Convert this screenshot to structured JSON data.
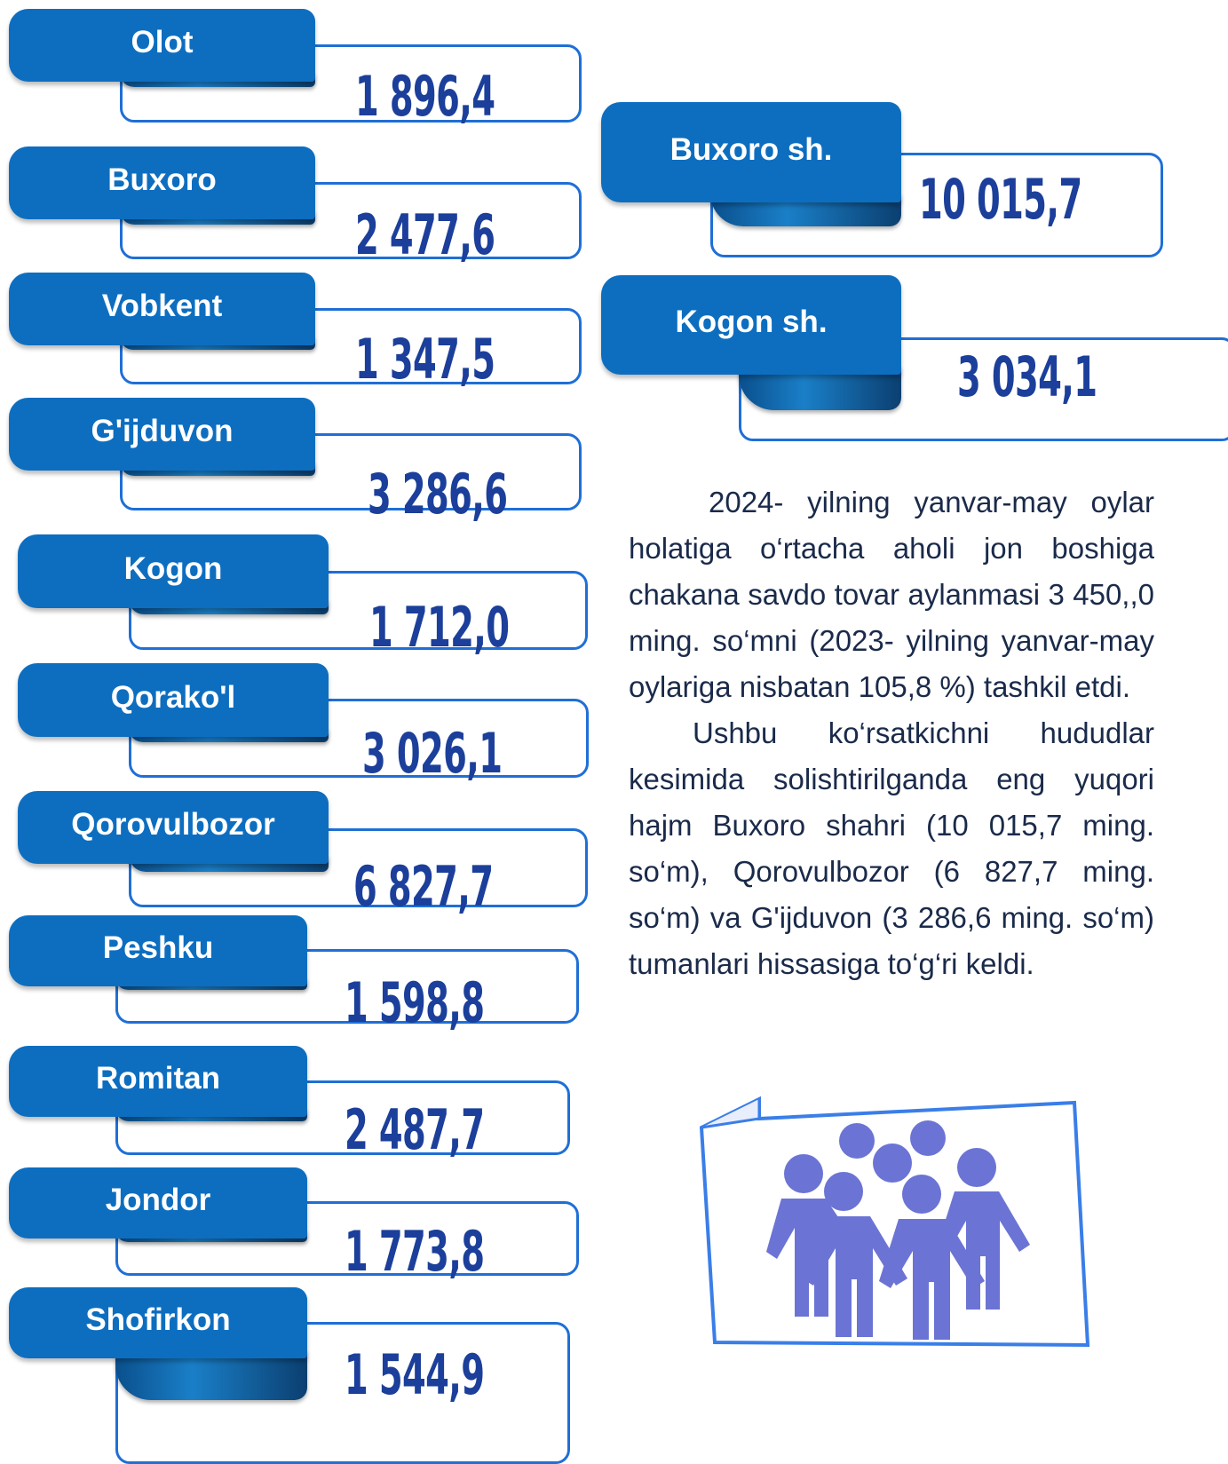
{
  "left": [
    {
      "label": "Olot",
      "value": "1 896,4"
    },
    {
      "label": "Buxoro",
      "value": "2 477,6"
    },
    {
      "label": "Vobkent",
      "value": "1 347,5"
    },
    {
      "label": "G'ijduvon",
      "value": "3 286,6"
    },
    {
      "label": "Kogon",
      "value": "1 712,0"
    },
    {
      "label": "Qorako'l",
      "value": "3 026,1"
    },
    {
      "label": "Qorovulbozor",
      "value": "6 827,7"
    },
    {
      "label": "Peshku",
      "value": "1 598,8"
    },
    {
      "label": "Romitan",
      "value": "2 487,7"
    },
    {
      "label": "Jondor",
      "value": "1 773,8"
    },
    {
      "label": "Shofirkon",
      "value": "1 544,9"
    }
  ],
  "right": [
    {
      "label": "Buxoro sh.",
      "value": "10 015,7"
    },
    {
      "label": "Kogon sh.",
      "value": "3 034,1"
    }
  ],
  "text": {
    "paragraphs": [
      "2024- yilning yanvar-may oylar holatiga o‘rtacha aholi jon boshiga chakana savdo tovar aylanmasi 3 450,,0 ming. so‘mni (2023- yilning yanvar-may oylariga nisbatan 105,8 %) tashkil etdi.",
      "Ushbu ko‘rsatkichni hududlar kesimida solishtirilganda eng yuqori hajm Buxoro shahri (10 015,7 ming. so‘m), Qorovulbozor (6 827,7 ming. so‘m) va G'ijduvon (3 286,6 ming. so‘m) tumanlari hissasiga to‘g‘ri keldi."
    ]
  }
}
